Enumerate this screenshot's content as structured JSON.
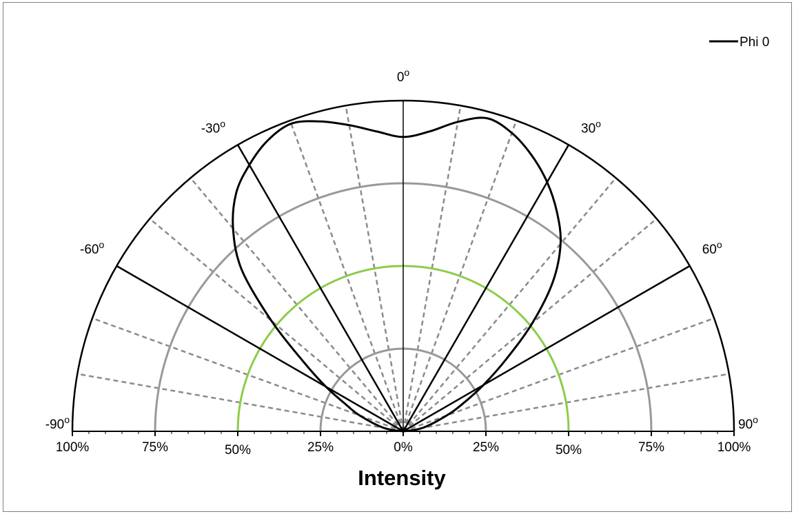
{
  "chart_data": {
    "type": "polar-line",
    "title": "",
    "xlabel": "Intensity",
    "theta_range_deg": [
      -90,
      90
    ],
    "r_range_percent": [
      0,
      100
    ],
    "angle_ticks": [
      {
        "deg": -90,
        "label": "-90"
      },
      {
        "deg": -60,
        "label": "-60"
      },
      {
        "deg": -30,
        "label": "-30"
      },
      {
        "deg": 0,
        "label": "0"
      },
      {
        "deg": 30,
        "label": "30"
      },
      {
        "deg": 60,
        "label": "60"
      },
      {
        "deg": 90,
        "label": "90"
      }
    ],
    "degree_symbol": "o",
    "radial_tick_labels": [
      "100%",
      "75%",
      "50%",
      "25%",
      "0%",
      "25%",
      "50%",
      "75%",
      "100%"
    ],
    "radial_tick_values": [
      -100,
      -75,
      -50,
      -25,
      0,
      25,
      50,
      75,
      100
    ],
    "gray_rings_percent": [
      25,
      75
    ],
    "highlight_ring_percent": 50,
    "highlight_color": "#8ccc4a",
    "ring_color": "#999999",
    "major_spoke_step_deg": 30,
    "minor_spoke_step_deg": 10,
    "grid": true,
    "legend_position": "top-right",
    "series": [
      {
        "name": "Phi 0",
        "color": "#000000",
        "points": [
          {
            "theta": -90,
            "r": 0
          },
          {
            "theta": -80,
            "r": 6
          },
          {
            "theta": -70,
            "r": 14
          },
          {
            "theta": -65,
            "r": 19
          },
          {
            "theta": -60,
            "r": 27
          },
          {
            "theta": -55,
            "r": 37
          },
          {
            "theta": -50,
            "r": 52
          },
          {
            "theta": -45,
            "r": 69
          },
          {
            "theta": -40,
            "r": 80
          },
          {
            "theta": -35,
            "r": 88
          },
          {
            "theta": -30,
            "r": 93
          },
          {
            "theta": -25,
            "r": 97
          },
          {
            "theta": -20,
            "r": 99
          },
          {
            "theta": -15,
            "r": 97
          },
          {
            "theta": -10,
            "r": 94
          },
          {
            "theta": -5,
            "r": 91
          },
          {
            "theta": 0,
            "r": 89
          },
          {
            "theta": 5,
            "r": 91
          },
          {
            "theta": 10,
            "r": 95
          },
          {
            "theta": 15,
            "r": 98
          },
          {
            "theta": 20,
            "r": 96
          },
          {
            "theta": 25,
            "r": 92
          },
          {
            "theta": 30,
            "r": 87
          },
          {
            "theta": 35,
            "r": 81
          },
          {
            "theta": 40,
            "r": 74
          },
          {
            "theta": 45,
            "r": 64
          },
          {
            "theta": 50,
            "r": 51
          },
          {
            "theta": 55,
            "r": 38
          },
          {
            "theta": 60,
            "r": 28
          },
          {
            "theta": 65,
            "r": 20
          },
          {
            "theta": 70,
            "r": 14
          },
          {
            "theta": 80,
            "r": 6
          },
          {
            "theta": 90,
            "r": 0
          }
        ]
      }
    ]
  }
}
